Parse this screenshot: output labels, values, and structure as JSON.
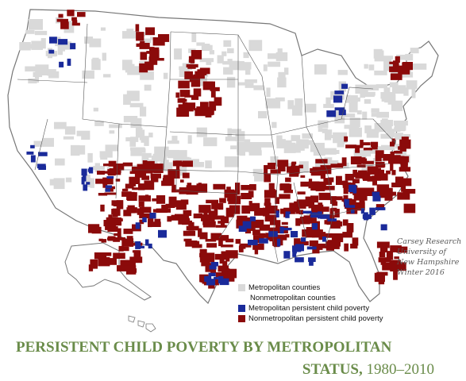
{
  "map": {
    "name": "us-county-map",
    "credit": [
      "Carsey Research",
      "University of",
      "New Hampshire",
      "Winter 2016"
    ]
  },
  "legend": {
    "items": [
      {
        "label": "Metropolitan counties",
        "color": "#d9d9d9"
      },
      {
        "label": "Nonmetropolitan counties",
        "color": "#ffffff"
      },
      {
        "label": "Metropolitan persistent child poverty",
        "color": "#1a2a9a"
      },
      {
        "label": "Nonmetropolitan persistent child poverty",
        "color": "#8b0a0a"
      }
    ]
  },
  "title": {
    "line1": "PERSISTENT CHILD POVERTY BY METROPOLITAN",
    "line2_bold": "STATUS,",
    "line2_years": " 1980–2010"
  },
  "colors": {
    "metro": "#d9d9d9",
    "nonmetro": "#ffffff",
    "metro_poverty": "#1a2a9a",
    "nonmetro_poverty": "#8b0a0a",
    "border": "#777777",
    "title": "#6a8c4a"
  }
}
